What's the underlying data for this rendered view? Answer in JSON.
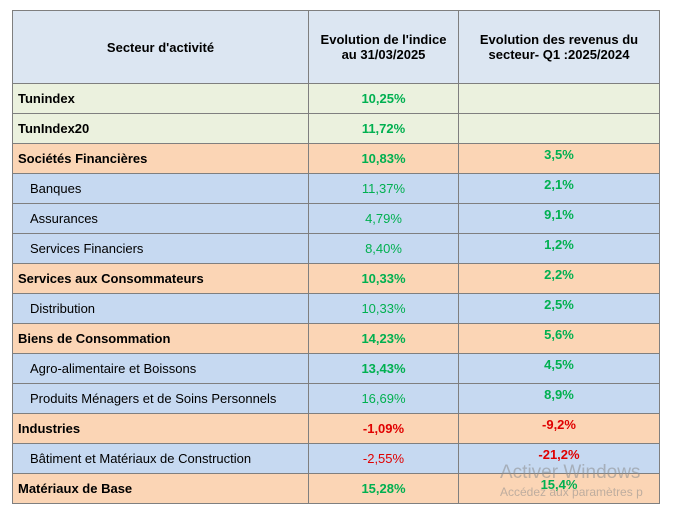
{
  "header": {
    "col1": "Secteur d'activité",
    "col2_line1": "Evolution  de l'indice",
    "col2_line2": "au 31/03/2025",
    "col3_line1": "Evolution  des revenus du",
    "col3_line2": "secteur- Q1 :2025/2024"
  },
  "rows": [
    {
      "sector": "Tunindex",
      "index": "10,25%",
      "revenue": ""
    },
    {
      "sector": "TunIndex20",
      "index": "11,72%",
      "revenue": ""
    },
    {
      "sector": "Sociétés Financières",
      "index": "10,83%",
      "revenue": "3,5%"
    },
    {
      "sector": "Banques",
      "index": "11,37%",
      "revenue": "2,1%"
    },
    {
      "sector": "Assurances",
      "index": "4,79%",
      "revenue": "9,1%"
    },
    {
      "sector": "Services Financiers",
      "index": "8,40%",
      "revenue": "1,2%"
    },
    {
      "sector": "Services aux Consommateurs",
      "index": "10,33%",
      "revenue": "2,2%"
    },
    {
      "sector": "Distribution",
      "index": "10,33%",
      "revenue": "2,5%"
    },
    {
      "sector": "Biens de Consommation",
      "index": "14,23%",
      "revenue": "5,6%"
    },
    {
      "sector": "Agro-alimentaire et Boissons",
      "index": "13,43%",
      "revenue": "4,5%"
    },
    {
      "sector": "Produits Ménagers et de Soins Personnels",
      "index": "16,69%",
      "revenue": "8,9%"
    },
    {
      "sector": "Industries",
      "index": "-1,09%",
      "revenue": "-9,2%"
    },
    {
      "sector": "Bâtiment et Matériaux de Construction",
      "index": "-2,55%",
      "revenue": "-21,2%"
    },
    {
      "sector": "Matériaux de Base",
      "index": "15,28%",
      "revenue": "15,4%"
    }
  ],
  "colors": {
    "positive": "#00b050",
    "negative": "#e00000",
    "header_bg": "#dce6f2",
    "index_row_bg": "#ebf1de",
    "category_bg": "#fbd5b5",
    "subcategory_bg": "#c6d9f1"
  },
  "watermark": {
    "line1": "Activer Windows",
    "line2": "Accédez aux paramètres p"
  }
}
